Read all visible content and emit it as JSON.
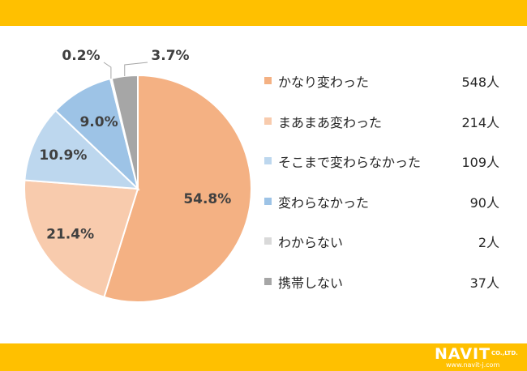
{
  "chart_data": {
    "type": "pie",
    "title": "",
    "categories": [
      "かなり変わった",
      "まあまあ変わった",
      "そこまで変わらなかった",
      "変わらなかった",
      "わからない",
      "携帯しない"
    ],
    "counts": [
      "548人",
      "214人",
      "109人",
      "90人",
      "2人",
      "37人"
    ],
    "values": [
      54.8,
      21.4,
      10.9,
      9.0,
      0.2,
      3.7
    ],
    "value_labels": [
      "54.8%",
      "21.4%",
      "10.9%",
      "9.0%",
      "0.2%",
      "3.7%"
    ],
    "colors": [
      "#f4b183",
      "#f8cbad",
      "#bdd7ee",
      "#9dc3e6",
      "#d9d9d9",
      "#a6a6a6"
    ],
    "legend": "right"
  },
  "logo": {
    "main": "NAVIT",
    "suffix": "CO.,LTD.",
    "url": "www.navit-j.com"
  }
}
